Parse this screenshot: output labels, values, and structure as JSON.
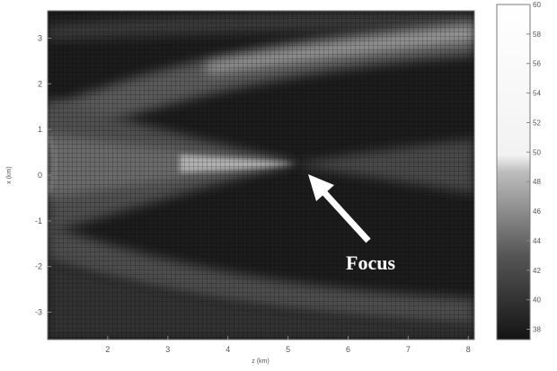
{
  "chart_data": {
    "type": "heatmap",
    "x_label": "z (km)",
    "y_label": "x (km)",
    "xlim": [
      1,
      8.1
    ],
    "xticks": [
      2,
      3,
      4,
      5,
      6,
      7,
      8
    ],
    "ylim": [
      -3.6,
      3.6
    ],
    "yticks": [
      -3,
      -2,
      -1,
      0,
      1,
      2,
      3
    ],
    "colorbar": {
      "lim": [
        37.3,
        60
      ],
      "ticks": [
        38,
        40,
        42,
        44,
        46,
        48,
        50,
        52,
        54,
        56,
        58,
        60
      ]
    },
    "annotation": "Focus"
  }
}
